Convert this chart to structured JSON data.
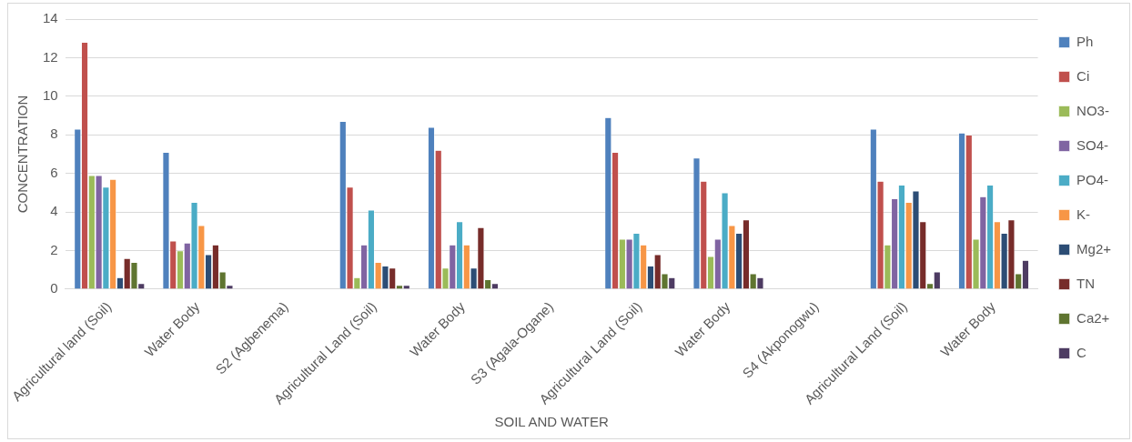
{
  "chart_data": {
    "type": "bar",
    "xlabel": "SOIL AND WATER",
    "ylabel": "CONCENTRATION",
    "categories": [
      "Agricultural land (Soil)",
      "Water Body",
      "S2 (Agbenema)",
      "Agricultural Land (Soil)",
      "Water Body",
      "S3 (Agala-Ogane)",
      "Agricultural Land (Soil)",
      "Water Body",
      "S4 (Akponogwu)",
      "Agricultural Land (Soil)",
      "Water Body"
    ],
    "series": [
      {
        "name": "Ph",
        "color": "#4f81bd",
        "values": [
          8.3,
          7.1,
          null,
          8.7,
          8.4,
          null,
          8.9,
          6.8,
          null,
          8.3,
          8.1
        ]
      },
      {
        "name": "Ci",
        "color": "#c0504d",
        "values": [
          12.8,
          2.5,
          null,
          5.3,
          7.2,
          null,
          7.1,
          5.6,
          null,
          5.6,
          8.0
        ]
      },
      {
        "name": "NO3-",
        "color": "#9bbb59",
        "values": [
          5.9,
          2.0,
          null,
          0.6,
          1.1,
          null,
          2.6,
          1.7,
          null,
          2.3,
          2.6
        ]
      },
      {
        "name": "SO4-",
        "color": "#8064a2",
        "values": [
          5.9,
          2.4,
          null,
          2.3,
          2.3,
          null,
          2.6,
          2.6,
          null,
          4.7,
          4.8
        ]
      },
      {
        "name": "PO4-",
        "color": "#4bacc6",
        "values": [
          5.3,
          4.5,
          null,
          4.1,
          3.5,
          null,
          2.9,
          5.0,
          null,
          5.4,
          5.4
        ]
      },
      {
        "name": "K-",
        "color": "#f79646",
        "values": [
          5.7,
          3.3,
          null,
          1.4,
          2.3,
          null,
          2.3,
          3.3,
          null,
          4.5,
          3.5
        ]
      },
      {
        "name": "Mg2+",
        "color": "#2c4d75",
        "values": [
          0.6,
          1.8,
          null,
          1.2,
          1.1,
          null,
          1.2,
          2.9,
          null,
          5.1,
          2.9
        ]
      },
      {
        "name": "TN",
        "color": "#772c2a",
        "values": [
          1.6,
          2.3,
          null,
          1.1,
          3.2,
          null,
          1.8,
          3.6,
          null,
          3.5,
          3.6
        ]
      },
      {
        "name": "Ca2+",
        "color": "#5f7530",
        "values": [
          1.4,
          0.9,
          null,
          0.2,
          0.5,
          null,
          0.8,
          0.8,
          null,
          0.3,
          0.8
        ]
      },
      {
        "name": "C",
        "color": "#4d3b62",
        "values": [
          0.3,
          0.2,
          null,
          0.2,
          0.3,
          null,
          0.6,
          0.6,
          null,
          0.9,
          1.5
        ]
      }
    ],
    "ylim": [
      0,
      14
    ],
    "yticks": [
      0,
      2,
      4,
      6,
      8,
      10,
      12,
      14
    ],
    "grid": "y",
    "legend": "right"
  }
}
